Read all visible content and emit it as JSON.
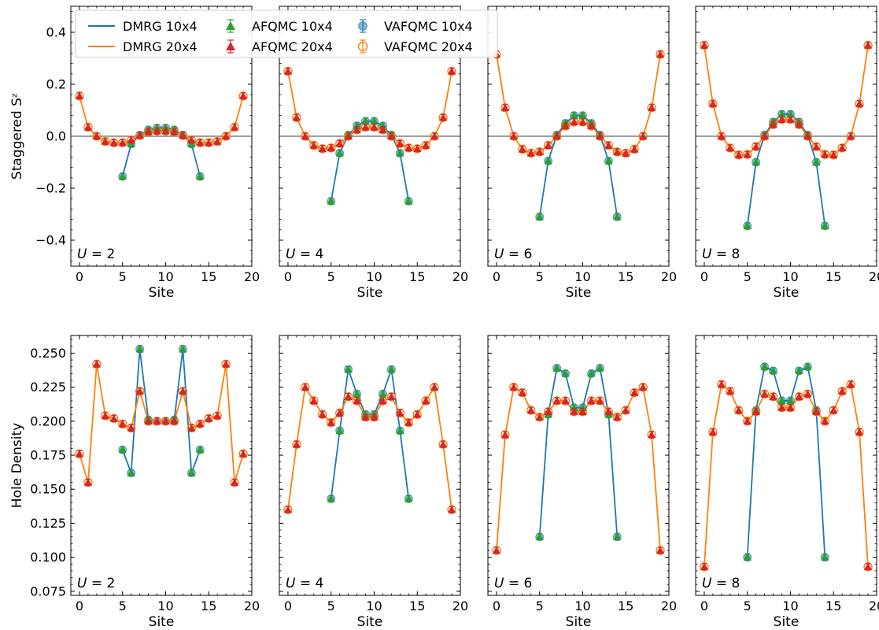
{
  "chart_data": {
    "type": "line",
    "layout": "2 rows x 4 columns, shared y-axis per row",
    "x": [
      0,
      1,
      2,
      3,
      4,
      5,
      6,
      7,
      8,
      9,
      10,
      11,
      12,
      13,
      14,
      15,
      16,
      17,
      18,
      19
    ],
    "xlabel": "Site",
    "xticks": [
      0,
      5,
      10,
      15,
      20
    ],
    "xlim": [
      -1,
      20
    ],
    "legend": {
      "placement": "top-left of first panel, spanning",
      "entries": [
        {
          "label": "DMRG 10x4",
          "series": "dmrg10"
        },
        {
          "label": "DMRG 20x4",
          "series": "dmrg20"
        },
        {
          "label": "AFQMC 10x4",
          "series": "afqmc10"
        },
        {
          "label": "AFQMC 20x4",
          "series": "afqmc20"
        },
        {
          "label": "VAFQMC 10x4",
          "series": "vafqmc10"
        },
        {
          "label": "VAFQMC 20x4",
          "series": "vafqmc20"
        }
      ]
    },
    "series_styles": {
      "dmrg10": {
        "color": "#1f77b4",
        "kind": "line"
      },
      "dmrg20": {
        "color": "#ff7f0e",
        "kind": "line"
      },
      "afqmc10": {
        "color": "#2ca02c",
        "kind": "triangle"
      },
      "afqmc20": {
        "color": "#d62728",
        "kind": "triangle"
      },
      "vafqmc10": {
        "color": "#1f77b4",
        "kind": "circle-filled"
      },
      "vafqmc20": {
        "color": "#ff7f0e",
        "kind": "circle-open"
      }
    },
    "rows": [
      {
        "ylabel": "Staggered Sᶻ",
        "ylim": [
          -0.5,
          0.5
        ],
        "yticks": [
          -0.4,
          -0.2,
          0.0,
          0.2,
          0.4
        ],
        "ytick_labels": [
          "−0.4",
          "−0.2",
          "0.0",
          "0.2",
          "0.4"
        ],
        "zero_line": true,
        "panels": [
          {
            "label": "U = 2",
            "short_x": [
              5,
              6,
              7,
              8,
              9,
              10,
              11,
              12,
              13,
              14
            ],
            "short": [
              -0.155,
              -0.03,
              0.005,
              0.025,
              0.032,
              0.032,
              0.025,
              0.005,
              -0.03,
              -0.155
            ],
            "long": [
              0.155,
              0.035,
              0.0,
              -0.02,
              -0.025,
              -0.025,
              -0.015,
              0.003,
              0.017,
              0.02,
              0.02,
              0.017,
              0.003,
              -0.015,
              -0.025,
              -0.025,
              -0.02,
              0.0,
              0.035,
              0.155
            ]
          },
          {
            "label": "U = 4",
            "short_x": [
              5,
              6,
              7,
              8,
              9,
              10,
              11,
              12,
              13,
              14
            ],
            "short": [
              -0.25,
              -0.065,
              0.005,
              0.04,
              0.058,
              0.058,
              0.04,
              0.005,
              -0.065,
              -0.25
            ],
            "long": [
              0.25,
              0.072,
              0.0,
              -0.035,
              -0.048,
              -0.045,
              -0.028,
              0.0,
              0.025,
              0.035,
              0.035,
              0.025,
              0.0,
              -0.028,
              -0.045,
              -0.048,
              -0.035,
              0.0,
              0.072,
              0.25
            ]
          },
          {
            "label": "U = 6",
            "short_x": [
              5,
              6,
              7,
              8,
              9,
              10,
              11,
              12,
              13,
              14
            ],
            "short": [
              -0.31,
              -0.095,
              0.005,
              0.05,
              0.08,
              0.08,
              0.05,
              0.005,
              -0.095,
              -0.31
            ],
            "long": [
              0.315,
              0.11,
              0.0,
              -0.05,
              -0.065,
              -0.06,
              -0.035,
              0.0,
              0.04,
              0.055,
              0.055,
              0.04,
              0.0,
              -0.035,
              -0.06,
              -0.065,
              -0.05,
              0.0,
              0.11,
              0.315
            ]
          },
          {
            "label": "U = 8",
            "short_x": [
              5,
              6,
              7,
              8,
              9,
              10,
              11,
              12,
              13,
              14
            ],
            "short": [
              -0.345,
              -0.1,
              0.005,
              0.055,
              0.085,
              0.085,
              0.055,
              0.005,
              -0.1,
              -0.345
            ],
            "long": [
              0.35,
              0.125,
              0.0,
              -0.045,
              -0.072,
              -0.07,
              -0.04,
              0.0,
              0.045,
              0.065,
              0.065,
              0.045,
              0.0,
              -0.04,
              -0.07,
              -0.072,
              -0.045,
              0.0,
              0.125,
              0.35
            ]
          }
        ]
      },
      {
        "ylabel": "Hole Density",
        "ylim": [
          0.072,
          0.263
        ],
        "yticks": [
          0.075,
          0.1,
          0.125,
          0.15,
          0.175,
          0.2,
          0.225,
          0.25
        ],
        "ytick_labels": [
          "0.075",
          "0.100",
          "0.125",
          "0.150",
          "0.175",
          "0.200",
          "0.225",
          "0.250"
        ],
        "zero_line": false,
        "panels": [
          {
            "label": "U = 2",
            "short_x": [
              5,
              6,
              7,
              8,
              9,
              10,
              11,
              12,
              13,
              14
            ],
            "short": [
              0.179,
              0.162,
              0.253,
              0.201,
              0.2,
              0.2,
              0.201,
              0.253,
              0.162,
              0.179
            ],
            "long": [
              0.176,
              0.155,
              0.242,
              0.204,
              0.202,
              0.198,
              0.195,
              0.222,
              0.2,
              0.2,
              0.2,
              0.2,
              0.222,
              0.195,
              0.198,
              0.202,
              0.204,
              0.242,
              0.155,
              0.176
            ]
          },
          {
            "label": "U = 4",
            "short_x": [
              5,
              6,
              7,
              8,
              9,
              10,
              11,
              12,
              13,
              14
            ],
            "short": [
              0.143,
              0.193,
              0.238,
              0.22,
              0.205,
              0.205,
              0.22,
              0.238,
              0.193,
              0.143
            ],
            "long": [
              0.135,
              0.183,
              0.225,
              0.215,
              0.205,
              0.199,
              0.206,
              0.218,
              0.215,
              0.203,
              0.203,
              0.215,
              0.218,
              0.206,
              0.199,
              0.205,
              0.215,
              0.225,
              0.183,
              0.135
            ]
          },
          {
            "label": "U = 6",
            "short_x": [
              5,
              6,
              7,
              8,
              9,
              10,
              11,
              12,
              13,
              14
            ],
            "short": [
              0.115,
              0.205,
              0.239,
              0.235,
              0.21,
              0.21,
              0.235,
              0.239,
              0.205,
              0.115
            ],
            "long": [
              0.105,
              0.19,
              0.225,
              0.221,
              0.208,
              0.203,
              0.207,
              0.215,
              0.215,
              0.207,
              0.207,
              0.215,
              0.215,
              0.207,
              0.203,
              0.208,
              0.221,
              0.225,
              0.19,
              0.105
            ]
          },
          {
            "label": "U = 8",
            "short_x": [
              5,
              6,
              7,
              8,
              9,
              10,
              11,
              12,
              13,
              14
            ],
            "short": [
              0.1,
              0.208,
              0.24,
              0.237,
              0.215,
              0.215,
              0.237,
              0.24,
              0.208,
              0.1
            ],
            "long": [
              0.093,
              0.192,
              0.227,
              0.222,
              0.208,
              0.2,
              0.207,
              0.22,
              0.218,
              0.21,
              0.21,
              0.218,
              0.22,
              0.207,
              0.2,
              0.208,
              0.222,
              0.227,
              0.192,
              0.093
            ]
          }
        ]
      }
    ]
  }
}
